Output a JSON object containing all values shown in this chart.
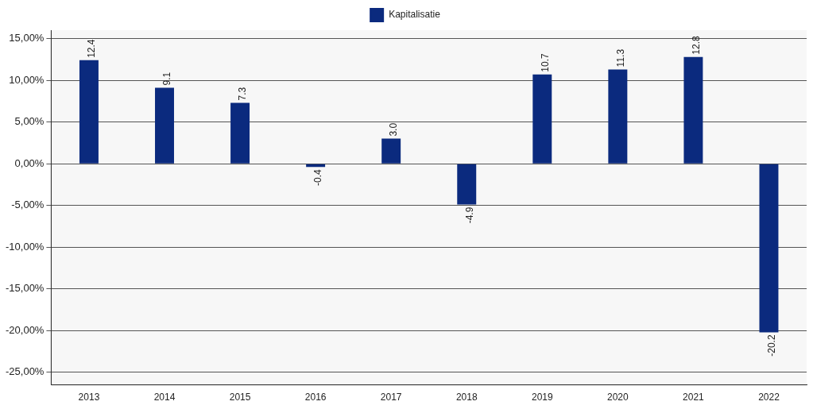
{
  "chart_data": {
    "type": "bar",
    "categories": [
      "2013",
      "2014",
      "2015",
      "2016",
      "2017",
      "2018",
      "2019",
      "2020",
      "2021",
      "2022"
    ],
    "series": [
      {
        "name": "Kapitalisatie",
        "color": "#0b2a7e",
        "values": [
          12.4,
          9.1,
          7.3,
          -0.4,
          3.0,
          -4.9,
          10.7,
          11.3,
          12.8,
          -20.2
        ],
        "value_labels": [
          "12.4",
          "9.1",
          "7.3",
          "-0.4",
          "3.0",
          "-4.9",
          "10.7",
          "11.3",
          "12.8",
          "-20.2"
        ]
      }
    ],
    "ylim": [
      -26.5,
      16
    ],
    "yticks": [
      {
        "value": -25,
        "label": "-25,00%"
      },
      {
        "value": -20,
        "label": "-20,00%"
      },
      {
        "value": -15,
        "label": "-15,00%"
      },
      {
        "value": -10,
        "label": "-10,00%"
      },
      {
        "value": -5,
        "label": "-5,00%"
      },
      {
        "value": 0,
        "label": "0,00%"
      },
      {
        "value": 5,
        "label": "5,00%"
      },
      {
        "value": 10,
        "label": "10,00%"
      },
      {
        "value": 15,
        "label": "15,00%"
      }
    ],
    "grid": "y",
    "legend": "top"
  }
}
